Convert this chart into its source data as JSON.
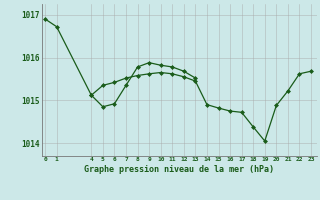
{
  "title": "Graphe pression niveau de la mer (hPa)",
  "background_color": "#cce8e8",
  "line_color": "#1a5c1a",
  "marker_color": "#1a5c1a",
  "grid_color": "#aaaaaa",
  "line1_x": [
    0,
    1,
    4,
    5,
    6,
    7,
    8,
    9,
    10,
    11,
    12,
    13
  ],
  "line1_y": [
    1016.9,
    1016.72,
    1015.12,
    1014.85,
    1014.92,
    1015.35,
    1015.78,
    1015.88,
    1015.82,
    1015.78,
    1015.68,
    1015.52
  ],
  "line2_x": [
    4,
    5,
    6,
    7,
    8,
    9,
    10,
    11,
    12,
    13,
    14,
    15,
    16,
    17,
    18,
    19,
    20,
    21,
    22,
    23
  ],
  "line2_y": [
    1015.12,
    1015.35,
    1015.42,
    1015.52,
    1015.58,
    1015.62,
    1015.65,
    1015.62,
    1015.55,
    1015.45,
    1014.9,
    1014.82,
    1014.75,
    1014.72,
    1014.38,
    1014.05,
    1014.88,
    1015.22,
    1015.62,
    1015.68
  ],
  "ylim": [
    1013.7,
    1017.25
  ],
  "yticks": [
    1014,
    1015,
    1016,
    1017
  ],
  "xlim": [
    -0.3,
    23.5
  ],
  "xticks": [
    0,
    1,
    4,
    5,
    6,
    7,
    8,
    9,
    10,
    11,
    12,
    13,
    14,
    15,
    16,
    17,
    18,
    19,
    20,
    21,
    22,
    23
  ],
  "xlabel_color": "#1a5c1a",
  "tick_label_color": "#1a5c1a"
}
